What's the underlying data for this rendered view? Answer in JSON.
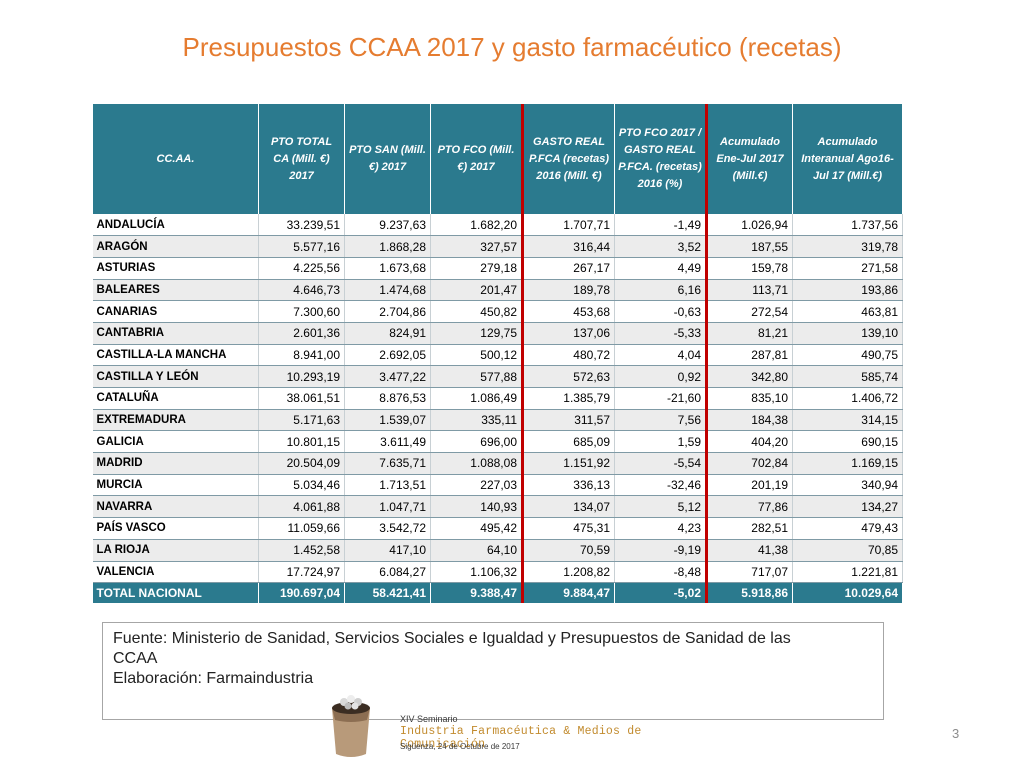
{
  "slide": {
    "title": "Presupuestos CCAA 2017 y gasto farmacéutico (recetas)",
    "page_number": "3"
  },
  "table": {
    "headers": [
      "CC.AA.",
      "PTO TOTAL CA (Mill. €) 2017",
      "PTO SAN (Mill. €)  2017",
      "PTO FCO (Mill.€)  2017",
      "GASTO REAL P.FCA (recetas) 2016 (Mill. €)",
      "PTO FCO  2017 /  GASTO REAL P.FCA. (recetas)  2016 (%)",
      "Acumulado Ene-Jul 2017 (Mill.€)",
      "Acumulado Interanual Ago16-Jul 17 (Mill.€)"
    ],
    "rows": [
      [
        "ANDALUCÍA",
        "33.239,51",
        "9.237,63",
        "1.682,20",
        "1.707,71",
        "-1,49",
        "1.026,94",
        "1.737,56"
      ],
      [
        "ARAGÓN",
        "5.577,16",
        "1.868,28",
        "327,57",
        "316,44",
        "3,52",
        "187,55",
        "319,78"
      ],
      [
        "ASTURIAS",
        "4.225,56",
        "1.673,68",
        "279,18",
        "267,17",
        "4,49",
        "159,78",
        "271,58"
      ],
      [
        "BALEARES",
        "4.646,73",
        "1.474,68",
        "201,47",
        "189,78",
        "6,16",
        "113,71",
        "193,86"
      ],
      [
        "CANARIAS",
        "7.300,60",
        "2.704,86",
        "450,82",
        "453,68",
        "-0,63",
        "272,54",
        "463,81"
      ],
      [
        "CANTABRIA",
        "2.601,36",
        "824,91",
        "129,75",
        "137,06",
        "-5,33",
        "81,21",
        "139,10"
      ],
      [
        "CASTILLA-LA MANCHA",
        "8.941,00",
        "2.692,05",
        "500,12",
        "480,72",
        "4,04",
        "287,81",
        "490,75"
      ],
      [
        "CASTILLA Y LEÓN",
        "10.293,19",
        "3.477,22",
        "577,88",
        "572,63",
        "0,92",
        "342,80",
        "585,74"
      ],
      [
        "CATALUÑA",
        "38.061,51",
        "8.876,53",
        "1.086,49",
        "1.385,79",
        "-21,60",
        "835,10",
        "1.406,72"
      ],
      [
        "EXTREMADURA",
        "5.171,63",
        "1.539,07",
        "335,11",
        "311,57",
        "7,56",
        "184,38",
        "314,15"
      ],
      [
        "GALICIA",
        "10.801,15",
        "3.611,49",
        "696,00",
        "685,09",
        "1,59",
        "404,20",
        "690,15"
      ],
      [
        "MADRID",
        "20.504,09",
        "7.635,71",
        "1.088,08",
        "1.151,92",
        "-5,54",
        "702,84",
        "1.169,15"
      ],
      [
        "MURCIA",
        "5.034,46",
        "1.713,51",
        "227,03",
        "336,13",
        "-32,46",
        "201,19",
        "340,94"
      ],
      [
        "NAVARRA",
        "4.061,88",
        "1.047,71",
        "140,93",
        "134,07",
        "5,12",
        "77,86",
        "134,27"
      ],
      [
        "PAÍS VASCO",
        "11.059,66",
        "3.542,72",
        "495,42",
        "475,31",
        "4,23",
        "282,51",
        "479,43"
      ],
      [
        "LA RIOJA",
        "1.452,58",
        "417,10",
        "64,10",
        "70,59",
        "-9,19",
        "41,38",
        "70,85"
      ],
      [
        "VALENCIA",
        "17.724,97",
        "6.084,27",
        "1.106,32",
        "1.208,82",
        "-8,48",
        "717,07",
        "1.221,81"
      ]
    ],
    "total": [
      "TOTAL NACIONAL",
      "190.697,04",
      "58.421,41",
      "9.388,47",
      "9.884,47",
      "-5,02",
      "5.918,86",
      "10.029,64"
    ]
  },
  "source": {
    "line1": "Fuente: Ministerio de Sanidad, Servicios Sociales e Igualdad y Presupuestos de Sanidad de las",
    "line2": "CCAA",
    "line3": "Elaboración: Farmaindustria"
  },
  "logo": {
    "line1": "XIV Seminario",
    "line2": "Industria Farmacéutica & Medios de Comunicación",
    "line3": "Sigüenza, 24 de Octubre de 2017"
  },
  "colors": {
    "title": "#e57c30",
    "header_bg": "#2b7a8e",
    "separator": "#c00000",
    "logo_text": "#c28b2e"
  }
}
